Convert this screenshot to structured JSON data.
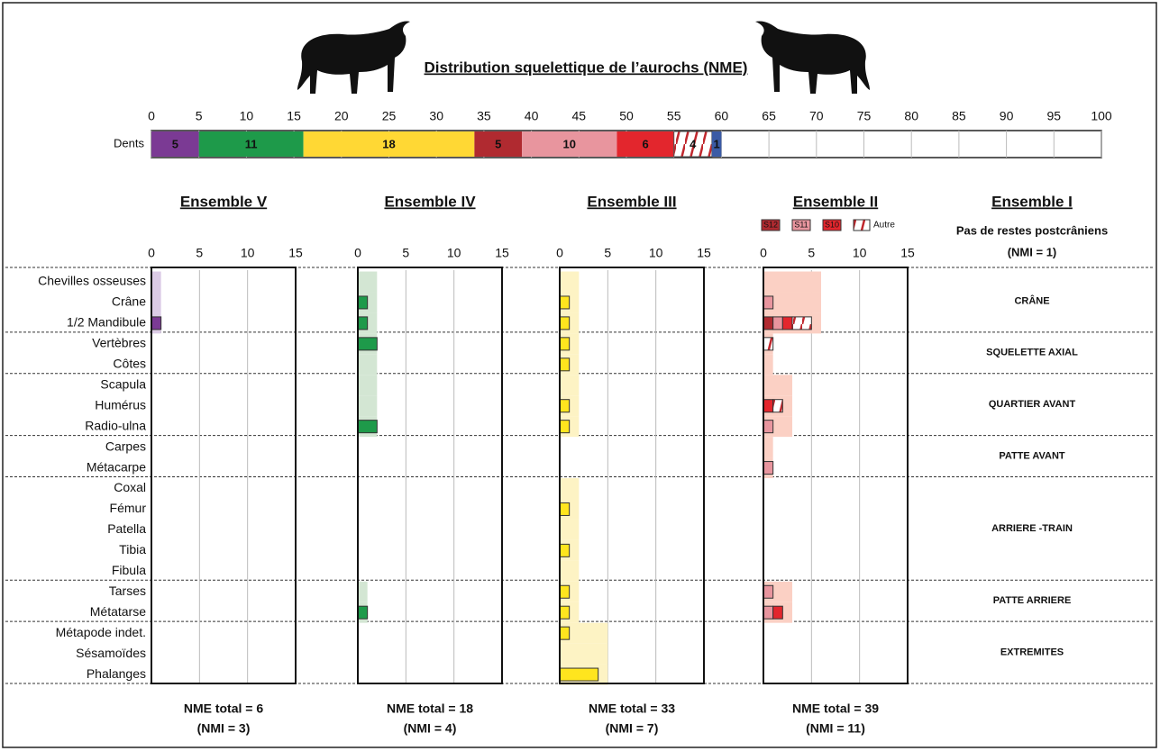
{
  "chart_data": [
    {
      "type": "stacked_bar",
      "title": "Distribution squelettique de l’aurochs (NME)",
      "categories": [
        "Dents"
      ],
      "xlim": [
        0,
        100
      ],
      "xticks": [
        0,
        5,
        10,
        15,
        20,
        25,
        30,
        35,
        40,
        45,
        50,
        55,
        60,
        65,
        70,
        75,
        80,
        85,
        90,
        95,
        100
      ],
      "grid": true,
      "series": [
        {
          "color": "#7b3a94",
          "values": [
            5
          ]
        },
        {
          "color": "#1e9a4a",
          "values": [
            11
          ]
        },
        {
          "color": "#ffd834",
          "values": [
            18
          ]
        },
        {
          "color": "#b02a30",
          "values": [
            5
          ]
        },
        {
          "color": "#e8959e",
          "values": [
            10
          ]
        },
        {
          "color": "#e3262d",
          "values": [
            6
          ]
        },
        {
          "color": "#c0272d",
          "hatch": true,
          "values": [
            4
          ]
        },
        {
          "color": "#3b5ba5",
          "values": [
            1
          ]
        }
      ]
    },
    {
      "type": "hbar",
      "title": "Ensemble V",
      "title_color": "#6a2a80",
      "xlim": [
        0,
        15
      ],
      "xticks": [
        0,
        5,
        10,
        15
      ],
      "grid": true,
      "background": {
        "color": "#dccbe6",
        "values": [
          1,
          1,
          1,
          0,
          0,
          0,
          0,
          0,
          0,
          0,
          0,
          0,
          0,
          0,
          0,
          0,
          0,
          0,
          0,
          0
        ]
      },
      "series": [
        {
          "color": "#7b3a94",
          "values": [
            0,
            0,
            1,
            0,
            0,
            0,
            0,
            0,
            0,
            0,
            0,
            0,
            0,
            0,
            0,
            0,
            0,
            0,
            0,
            0
          ]
        }
      ],
      "total": "NME total = 6",
      "nmi": "(NMI = 3)"
    },
    {
      "type": "hbar",
      "title": "Ensemble IV",
      "title_color": "#1e6a30",
      "xlim": [
        0,
        15
      ],
      "xticks": [
        0,
        5,
        10,
        15
      ],
      "grid": true,
      "background": {
        "color": "#d3e6d3",
        "values": [
          2,
          2,
          2,
          2,
          2,
          2,
          2,
          2,
          0,
          0,
          0,
          0,
          0,
          0,
          0,
          1,
          1,
          0,
          0,
          0
        ]
      },
      "series": [
        {
          "color": "#1e9a4a",
          "values": [
            0,
            1,
            1,
            2,
            0,
            0,
            0,
            2,
            0,
            0,
            0,
            0,
            0,
            0,
            0,
            0,
            1,
            0,
            0,
            0
          ]
        }
      ],
      "total": "NME total = 18",
      "nmi": "(NMI = 4)"
    },
    {
      "type": "hbar",
      "title": "Ensemble III",
      "title_color": "#b39a2c",
      "xlim": [
        0,
        15
      ],
      "xticks": [
        0,
        5,
        10,
        15
      ],
      "grid": true,
      "background": {
        "color": "#fdf3c4",
        "values": [
          2,
          2,
          2,
          2,
          2,
          2,
          2,
          2,
          0,
          0,
          2,
          2,
          2,
          2,
          2,
          2,
          2,
          5,
          5,
          5
        ]
      },
      "series": [
        {
          "color": "#ffe51e",
          "values": [
            0,
            1,
            1,
            1,
            1,
            0,
            1,
            1,
            0,
            0,
            0,
            1,
            0,
            1,
            0,
            1,
            1,
            1,
            0,
            4
          ]
        }
      ],
      "total": "NME total = 33",
      "nmi": "(NMI = 7)"
    },
    {
      "type": "hbar",
      "title": "Ensemble II",
      "title_color": "#b0282d",
      "xlim": [
        0,
        15
      ],
      "xticks": [
        0,
        5,
        10,
        15
      ],
      "grid": true,
      "legend": true,
      "background": {
        "color": "#fbd0c4",
        "values": [
          6,
          6,
          6,
          1,
          1,
          3,
          3,
          3,
          1,
          1,
          0,
          0,
          0,
          0,
          0,
          3,
          3,
          0,
          0,
          0
        ]
      },
      "series": [
        {
          "name": "S12",
          "color": "#b02a30",
          "values": [
            0,
            0,
            1,
            0,
            0,
            0,
            0,
            0,
            0,
            0,
            0,
            0,
            0,
            0,
            0,
            0,
            0,
            0,
            0,
            0
          ]
        },
        {
          "name": "S11",
          "color": "#e8959e",
          "values": [
            0,
            1,
            1,
            0,
            0,
            0,
            0,
            1,
            0,
            1,
            0,
            0,
            0,
            0,
            0,
            1,
            1,
            0,
            0,
            0
          ]
        },
        {
          "name": "S10",
          "color": "#e3262d",
          "values": [
            0,
            0,
            1,
            0,
            0,
            0,
            1,
            0,
            0,
            0,
            0,
            0,
            0,
            0,
            0,
            0,
            1,
            0,
            0,
            0
          ]
        },
        {
          "name": "Autre",
          "color": "#c0272d",
          "hatch": true,
          "values": [
            0,
            0,
            2,
            1,
            0,
            0,
            1,
            0,
            0,
            0,
            0,
            0,
            0,
            0,
            0,
            0,
            0,
            0,
            0,
            0
          ]
        }
      ],
      "total": "NME total = 39",
      "nmi": "(NMI = 11)"
    }
  ],
  "regions": [
    {
      "label": "CRÂNE",
      "categories": [
        "Chevilles osseuses",
        "Crâne",
        "1/2 Mandibule"
      ]
    },
    {
      "label": "SQUELETTE AXIAL",
      "categories": [
        "Vertèbres",
        "Côtes"
      ]
    },
    {
      "label": "QUARTIER AVANT",
      "categories": [
        "Scapula",
        "Humérus",
        "Radio-ulna"
      ]
    },
    {
      "label": "PATTE AVANT",
      "categories": [
        "Carpes",
        "Métacarpe"
      ]
    },
    {
      "label": "ARRIERE -TRAIN",
      "categories": [
        "Coxal",
        "Fémur",
        "Patella",
        "Tibia",
        "Fibula"
      ]
    },
    {
      "label": "PATTE ARRIERE",
      "categories": [
        "Tarses",
        "Métatarse"
      ]
    },
    {
      "label": "EXTREMITES",
      "categories": [
        "Métapode indet.",
        "Sésamoïdes",
        "Phalanges"
      ]
    }
  ],
  "ensemble_I": {
    "title": "Ensemble I",
    "title_color": "#2b2f7a",
    "note": "Pas de restes postcrâniens",
    "nmi": "(NMI = 1)"
  }
}
